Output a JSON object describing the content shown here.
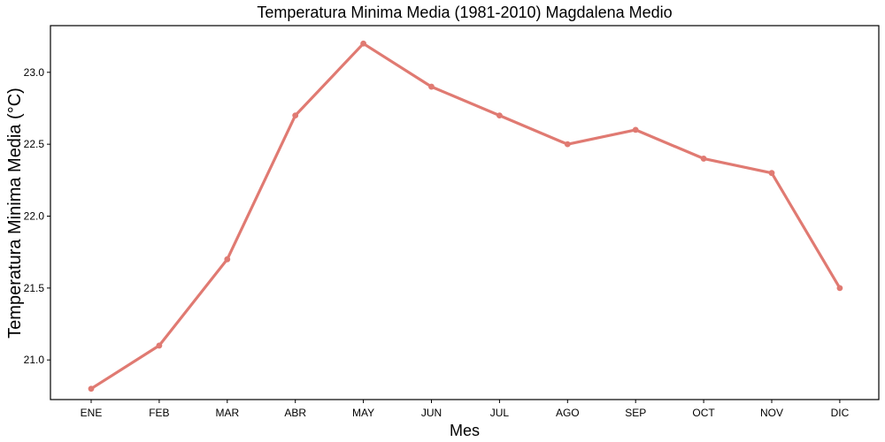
{
  "chart_data": {
    "type": "line",
    "title": "Temperatura Minima Media (1981-2010)  Magdalena Medio",
    "xlabel": "Mes",
    "ylabel": "Temperatura Minima Media  (°C)",
    "categories": [
      "ENE",
      "FEB",
      "MAR",
      "ABR",
      "MAY",
      "JUN",
      "JUL",
      "AGO",
      "SEP",
      "OCT",
      "NOV",
      "DIC"
    ],
    "series": [
      {
        "values": [
          20.8,
          21.1,
          21.7,
          22.7,
          23.2,
          22.9,
          22.7,
          22.5,
          22.6,
          22.4,
          22.3,
          21.5
        ]
      }
    ],
    "yticks": [
      "21.0",
      "21.5",
      "22.0",
      "22.5",
      "23.0"
    ],
    "ylim": [
      20.7,
      23.3
    ],
    "grid": false,
    "line_color": "#E07A72"
  }
}
